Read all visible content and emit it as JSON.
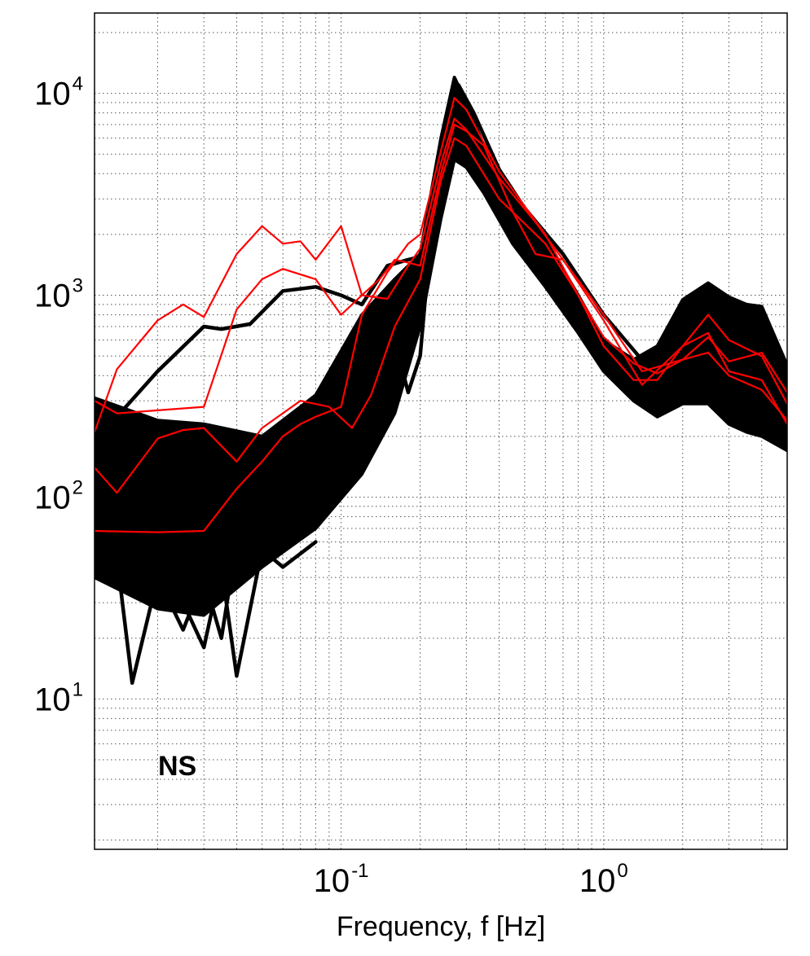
{
  "chart_data": {
    "type": "line",
    "title": "",
    "xlabel": "Frequency, f [Hz]",
    "ylabel": "",
    "x_scale": "log",
    "y_scale": "log",
    "xlim": [
      0.0115,
      5.0
    ],
    "ylim": [
      1.8,
      25000
    ],
    "grid": true,
    "grid_style": "dotted",
    "annotation": "NS",
    "annotation_placement": "bottom-left",
    "x_ticks": [
      {
        "base": "10",
        "exp": "-1",
        "value": 0.1
      },
      {
        "base": "10",
        "exp": "0",
        "value": 1
      }
    ],
    "y_ticks": [
      {
        "base": "10",
        "exp": "1",
        "value": 10
      },
      {
        "base": "10",
        "exp": "2",
        "value": 100
      },
      {
        "base": "10",
        "exp": "3",
        "value": 1000
      },
      {
        "base": "10",
        "exp": "4",
        "value": 10000
      }
    ],
    "colors": {
      "records": "#000000",
      "highlight": "#ff0000"
    },
    "black_band": {
      "description_role": "envelope of many black spectra",
      "x": [
        0.0115,
        0.02,
        0.03,
        0.05,
        0.08,
        0.12,
        0.16,
        0.2,
        0.24,
        0.27,
        0.3,
        0.35,
        0.45,
        0.6,
        0.8,
        1.0,
        1.3,
        1.6,
        2.0,
        2.5,
        3.0,
        3.5,
        4.0,
        5.0
      ],
      "upper": [
        310,
        240,
        230,
        200,
        320,
        800,
        1200,
        1600,
        6000,
        12000,
        9000,
        5500,
        3200,
        1900,
        1000,
        600,
        480,
        560,
        950,
        1150,
        980,
        900,
        880,
        450
      ],
      "lower": [
        40,
        28,
        26,
        45,
        70,
        130,
        260,
        700,
        2400,
        4700,
        4300,
        3200,
        1800,
        1100,
        650,
        420,
        300,
        250,
        290,
        290,
        230,
        210,
        200,
        170
      ]
    },
    "series": [
      {
        "color": "black",
        "x": [
          0.0115,
          0.014,
          0.016,
          0.02,
          0.025,
          0.03,
          0.035,
          0.04
        ],
        "y": [
          100,
          50,
          12,
          40,
          22,
          40,
          20,
          60
        ]
      },
      {
        "color": "black",
        "x": [
          0.02,
          0.025,
          0.03,
          0.035,
          0.04,
          0.05,
          0.06,
          0.08
        ],
        "y": [
          50,
          30,
          18,
          45,
          13,
          55,
          45,
          60
        ]
      },
      {
        "color": "black",
        "x": [
          0.014,
          0.02,
          0.03,
          0.035,
          0.045,
          0.06,
          0.08,
          0.1,
          0.12,
          0.15,
          0.18,
          0.2,
          0.22,
          0.25
        ],
        "y": [
          250,
          420,
          700,
          680,
          720,
          1050,
          1100,
          1000,
          900,
          1400,
          1500,
          1550,
          2400,
          4800
        ]
      },
      {
        "color": "black",
        "x": [
          0.1,
          0.13,
          0.16,
          0.18,
          0.2,
          0.22,
          0.25,
          0.28,
          0.32,
          0.4,
          0.5,
          0.7,
          1.0,
          1.5,
          2.0,
          2.5,
          3.0,
          4.0,
          5.0
        ],
        "y": [
          500,
          850,
          600,
          330,
          500,
          2000,
          6500,
          11000,
          8000,
          4200,
          2700,
          1600,
          800,
          430,
          700,
          1050,
          850,
          650,
          300
        ]
      },
      {
        "color": "black",
        "x": [
          0.0115,
          0.02,
          0.03,
          0.05,
          0.08,
          0.12,
          0.16,
          0.2,
          0.24,
          0.27,
          0.3,
          0.35,
          0.45,
          0.6,
          0.8,
          1.0,
          1.3,
          1.6,
          2.0,
          2.5,
          3.0,
          3.5,
          4.0,
          5.0
        ],
        "y": [
          120,
          80,
          90,
          90,
          150,
          320,
          650,
          1200,
          4200,
          8000,
          6800,
          4400,
          2500,
          1500,
          820,
          520,
          390,
          370,
          560,
          700,
          560,
          500,
          480,
          300
        ]
      },
      {
        "color": "red",
        "x": [
          0.0115,
          0.014,
          0.02,
          0.025,
          0.03,
          0.04,
          0.05,
          0.06,
          0.07,
          0.08,
          0.1,
          0.12,
          0.15,
          0.18,
          0.2,
          0.24,
          0.27,
          0.3,
          0.4,
          0.55,
          0.7,
          1.0,
          1.4,
          2.0,
          2.5,
          3.0,
          4.0,
          5.0
        ],
        "y": [
          210,
          430,
          750,
          900,
          780,
          1600,
          2200,
          1800,
          1850,
          1500,
          2200,
          1000,
          960,
          1400,
          1700,
          4500,
          7500,
          6600,
          3800,
          2300,
          1500,
          800,
          420,
          480,
          620,
          470,
          520,
          330
        ]
      },
      {
        "color": "red",
        "x": [
          0.0115,
          0.014,
          0.03,
          0.04,
          0.05,
          0.06,
          0.08,
          0.1,
          0.12,
          0.14,
          0.16,
          0.18,
          0.2,
          0.24,
          0.27,
          0.3,
          0.35,
          0.45,
          0.55,
          0.7,
          1.0,
          1.4,
          2.0,
          2.5,
          3.0,
          4.0,
          5.0
        ],
        "y": [
          300,
          260,
          280,
          850,
          1200,
          1350,
          1200,
          800,
          1000,
          1200,
          1500,
          1450,
          1400,
          4000,
          7000,
          6500,
          5500,
          2600,
          1600,
          1500,
          750,
          360,
          560,
          800,
          600,
          500,
          290
        ]
      },
      {
        "color": "red",
        "x": [
          0.0115,
          0.014,
          0.02,
          0.025,
          0.03,
          0.04,
          0.05,
          0.07,
          0.09,
          0.11,
          0.13,
          0.16,
          0.2,
          0.24,
          0.27,
          0.3,
          0.4,
          0.6,
          0.8,
          1.0,
          1.3,
          1.6,
          2.0,
          2.5,
          3.0,
          4.0,
          5.0
        ],
        "y": [
          140,
          105,
          195,
          215,
          220,
          150,
          220,
          300,
          280,
          220,
          320,
          700,
          1200,
          3700,
          6000,
          5500,
          3000,
          1800,
          1000,
          560,
          380,
          380,
          560,
          650,
          420,
          380,
          230
        ]
      },
      {
        "color": "red",
        "x": [
          0.0115,
          0.02,
          0.03,
          0.04,
          0.05,
          0.06,
          0.07,
          0.08,
          0.1,
          0.12,
          0.15,
          0.18,
          0.2,
          0.24,
          0.27,
          0.3,
          0.4,
          0.6,
          0.8,
          1.0,
          1.3,
          1.6,
          2.0,
          2.5,
          3.0,
          4.0,
          5.0
        ],
        "y": [
          68,
          67,
          68,
          110,
          150,
          200,
          230,
          250,
          280,
          800,
          1300,
          1800,
          2000,
          5200,
          9500,
          8300,
          4100,
          2000,
          1000,
          620,
          460,
          410,
          480,
          520,
          400,
          340,
          240
        ]
      }
    ]
  }
}
